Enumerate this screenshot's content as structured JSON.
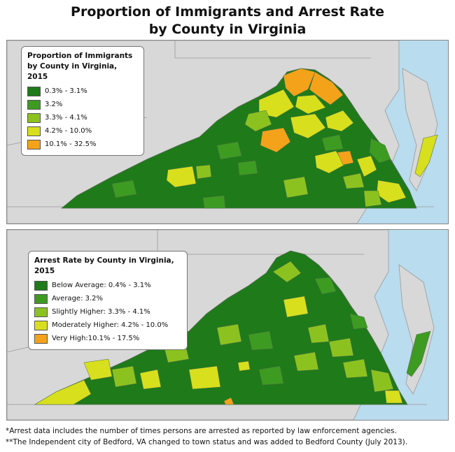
{
  "title_line1": "Proportion of Immigrants and Arrest Rate",
  "title_line2": "by County in Virginia",
  "colors": {
    "water": "#b9dcee",
    "land_gray": "#d8d8d8",
    "class1": "#1f7a1a",
    "class2": "#3d9b22",
    "class3": "#8cc21f",
    "class4": "#d8df1c",
    "class5": "#f5a21b"
  },
  "map_top": {
    "legend_title_line1": "Proportion of Immigrants",
    "legend_title_line2": "by County in Virginia, 2015",
    "legend": [
      {
        "label": "0.3% - 3.1%",
        "color": "#1f7a1a"
      },
      {
        "label": "3.2%",
        "color": "#3d9b22"
      },
      {
        "label": "3.3% - 4.1%",
        "color": "#8cc21f"
      },
      {
        "label": "4.2% - 10.0%",
        "color": "#d8df1c"
      },
      {
        "label": "10.1% - 32.5%",
        "color": "#f5a21b"
      }
    ]
  },
  "map_bottom": {
    "legend_title": "Arrest Rate by County in Virginia, 2015",
    "legend": [
      {
        "label": "Below Average: 0.4% - 3.1%",
        "color": "#1f7a1a"
      },
      {
        "label": "Average: 3.2%",
        "color": "#3d9b22"
      },
      {
        "label": "Slightly Higher: 3.3% - 4.1%",
        "color": "#8cc21f"
      },
      {
        "label": "Moderately Higher: 4.2% - 10.0%",
        "color": "#d8df1c"
      },
      {
        "label": "Very High:10.1% - 17.5%",
        "color": "#f5a21b"
      }
    ]
  },
  "footnote1": "*Arrest data includes the number of times persons are arrested as reported by law enforcement agencies.",
  "footnote2": "**The Independent city of Bedford, VA changed to town status and was added to Bedford County (July 2013)."
}
